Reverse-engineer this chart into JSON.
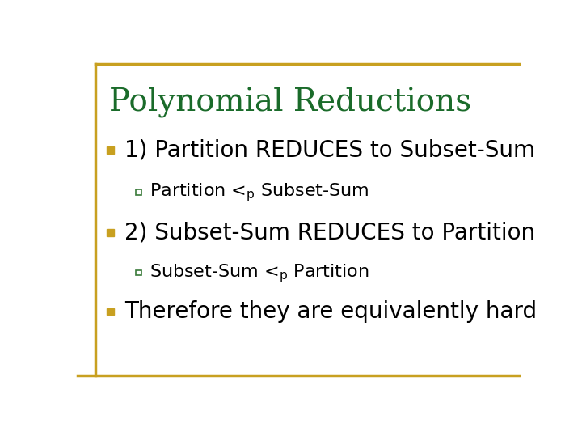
{
  "title": "Polynomial Reductions",
  "title_color": "#1a6b2a",
  "title_fontsize": 28,
  "title_font": "serif",
  "background_color": "#ffffff",
  "border_color": "#c8a020",
  "bullet_color_l1": "#c8a020",
  "bullet_color_l2_edge": "#3a7a3a",
  "text_color": "#000000",
  "items": [
    {
      "level": 1,
      "text": "1) Partition REDUCES to Subset-Sum",
      "fontsize": 20,
      "bold": false
    },
    {
      "level": 2,
      "text_parts": [
        "Partition <",
        "p",
        " Subset-Sum"
      ],
      "fontsize": 16,
      "bold": false
    },
    {
      "level": 1,
      "text": "2) Subset-Sum REDUCES to Partition",
      "fontsize": 20,
      "bold": false
    },
    {
      "level": 2,
      "text_parts": [
        "Subset-Sum <",
        "p",
        " Partition"
      ],
      "fontsize": 16,
      "bold": false
    },
    {
      "level": 1,
      "text": "Therefore they are equivalently hard",
      "fontsize": 20,
      "bold": false
    }
  ],
  "bottom_line_color": "#c8a020",
  "figsize": [
    7.2,
    5.4
  ],
  "dpi": 100
}
